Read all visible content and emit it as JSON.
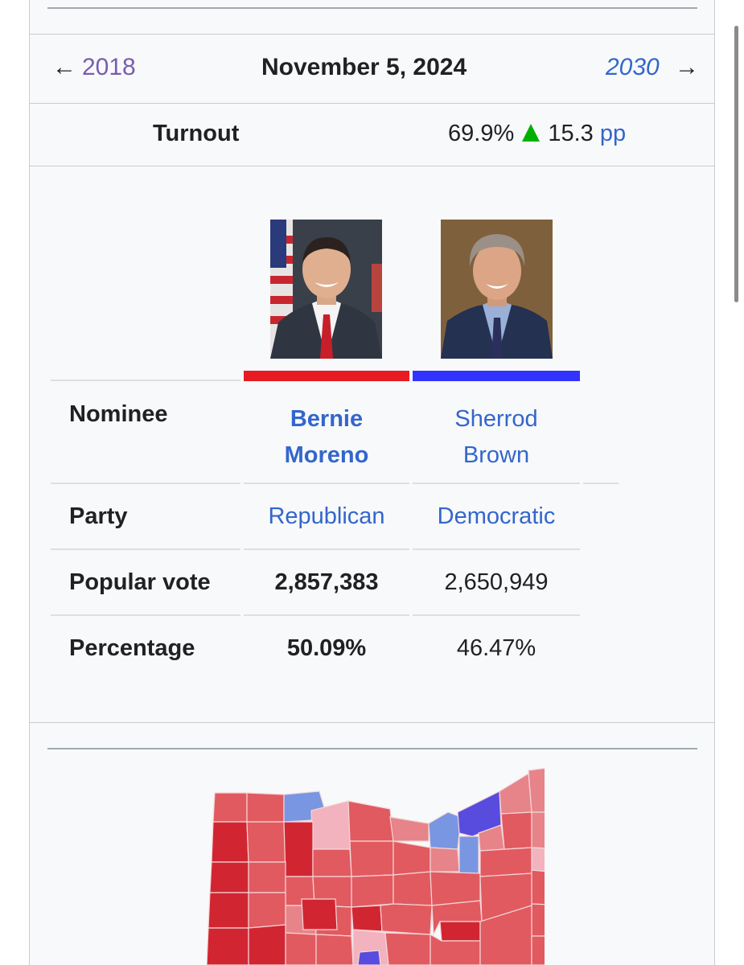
{
  "nav": {
    "prev_year": "2018",
    "date": "November 5, 2024",
    "next_year": "2030",
    "prev_arrow": "←",
    "next_arrow": "→"
  },
  "turnout": {
    "label": "Turnout",
    "value": "69.9%",
    "change": "15.3",
    "unit": "pp"
  },
  "candidates": [
    {
      "name_line1": "Bernie",
      "name_line2": "Moreno",
      "party": "Republican",
      "popular_vote": "2,857,383",
      "percentage": "50.09%",
      "color": "#e81b23"
    },
    {
      "name_line1": "Sherrod",
      "name_line2": "Brown",
      "party": "Democratic",
      "popular_vote": "2,650,949",
      "percentage": "46.47%",
      "color": "#3333ff"
    }
  ],
  "rows": {
    "nominee": "Nominee",
    "party": "Party",
    "popular_vote": "Popular vote",
    "percentage": "Percentage"
  },
  "colors": {
    "link": "#3366cc",
    "visited_link": "#795cb2",
    "increase": "#00b000",
    "map_red_dark": "#d22532",
    "map_red": "#e15a60",
    "map_red_light": "#e6848a",
    "map_red_pale": "#f2b3be",
    "map_blue": "#7996e2",
    "map_blue_dark": "#584cde"
  }
}
